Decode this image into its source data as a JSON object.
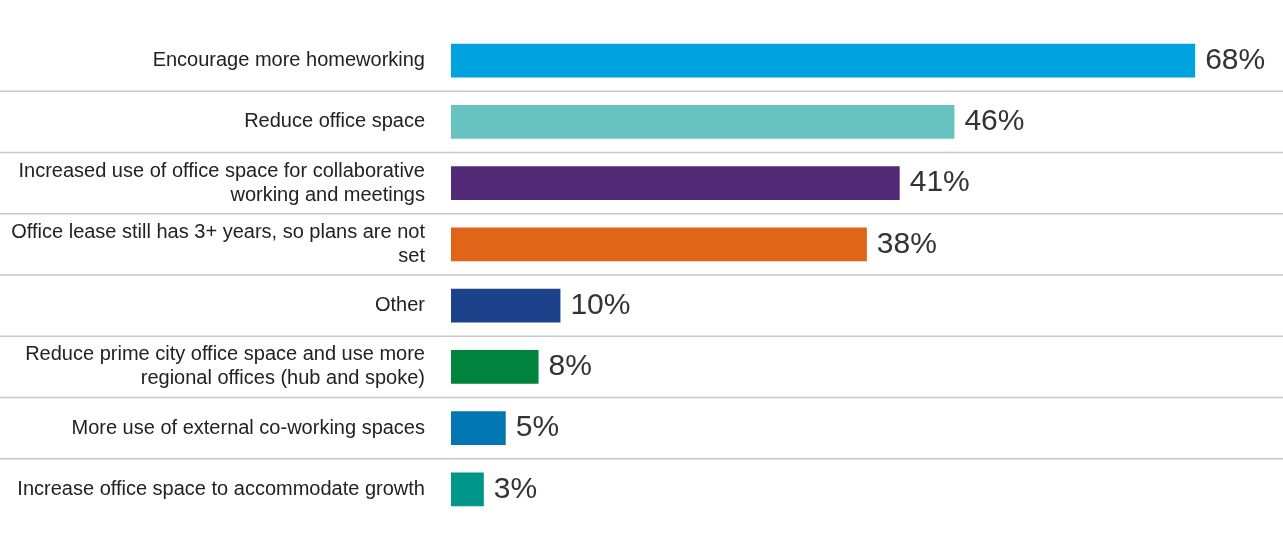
{
  "chart_data": {
    "type": "bar",
    "orientation": "horizontal",
    "categories": [
      "Encourage more homeworking",
      "Reduce office space",
      "Increased use of office space for collaborative working and meetings",
      "Office lease still has 3+ years, so plans are not set",
      "Other",
      "Reduce prime city office space and use more regional offices (hub and spoke)",
      "More use of external co-working spaces",
      "Increase office space to accommodate growth"
    ],
    "values": [
      68,
      46,
      41,
      38,
      10,
      8,
      5,
      3
    ],
    "colors": [
      "#00a3e0",
      "#66c3bf",
      "#532a77",
      "#e06518",
      "#1b428a",
      "#00843d",
      "#0077b0",
      "#00968a"
    ],
    "value_labels": [
      "68%",
      "46%",
      "41%",
      "38%",
      "10%",
      "8%",
      "5%",
      "3%"
    ],
    "grid": "y",
    "legend": false
  }
}
